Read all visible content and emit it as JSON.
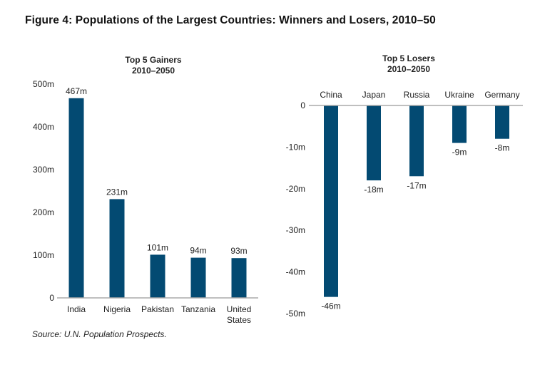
{
  "figure_title": "Figure 4: Populations of the Largest Countries: Winners and Losers, 2010–50",
  "source": "Source: U.N. Population Prospects.",
  "chart_data": [
    {
      "type": "bar",
      "title": "Top 5 Gainers",
      "subtitle": "2010–2050",
      "categories": [
        "India",
        "Nigeria",
        "Pakistan",
        "Tanzania",
        "United States"
      ],
      "category_lines": [
        [
          "India"
        ],
        [
          "Nigeria"
        ],
        [
          "Pakistan"
        ],
        [
          "Tanzania"
        ],
        [
          "United",
          "States"
        ]
      ],
      "values": [
        467,
        231,
        101,
        94,
        93
      ],
      "data_labels": [
        "467m",
        "231m",
        "101m",
        "94m",
        "93m"
      ],
      "yticks": [
        0,
        100,
        200,
        300,
        400,
        500
      ],
      "ytick_labels": [
        "0",
        "100m",
        "200m",
        "300m",
        "400m",
        "500m"
      ],
      "ylim": [
        0,
        500
      ],
      "unit": "millions",
      "color": "#034a72",
      "grid": false
    },
    {
      "type": "bar",
      "title": "Top 5 Losers",
      "subtitle": "2010–2050",
      "categories": [
        "China",
        "Japan",
        "Russia",
        "Ukraine",
        "Germany"
      ],
      "category_lines": [
        [
          "China"
        ],
        [
          "Japan"
        ],
        [
          "Russia"
        ],
        [
          "Ukraine"
        ],
        [
          "Germany"
        ]
      ],
      "values": [
        -46,
        -18,
        -17,
        -9,
        -8
      ],
      "data_labels": [
        "-46m",
        "-18m",
        "-17m",
        "-9m",
        "-8m"
      ],
      "yticks": [
        0,
        -10,
        -20,
        -30,
        -40,
        -50
      ],
      "ytick_labels": [
        "0",
        "-10m",
        "-20m",
        "-30m",
        "-40m",
        "-50m"
      ],
      "ylim": [
        -50,
        0
      ],
      "unit": "millions",
      "color": "#034a72",
      "grid": false
    }
  ]
}
